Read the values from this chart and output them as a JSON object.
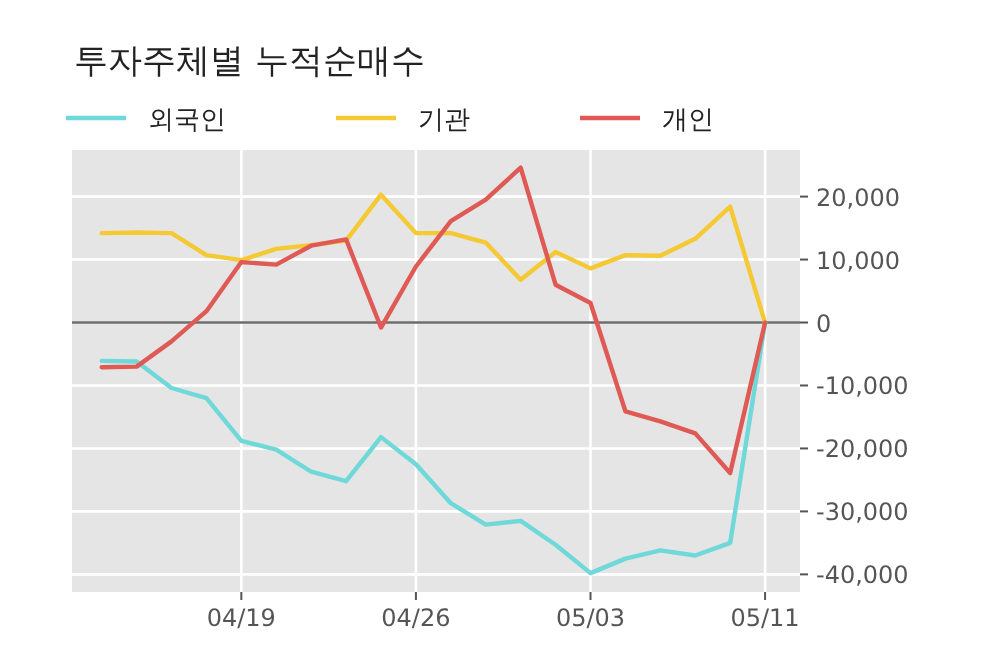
{
  "chart_data": {
    "type": "line",
    "title": "투자주체별 누적순매수",
    "categories": [
      null,
      null,
      null,
      null,
      "04/19",
      null,
      null,
      null,
      null,
      "04/26",
      null,
      null,
      null,
      null,
      "05/03",
      null,
      null,
      null,
      null,
      "05/11"
    ],
    "series": [
      {
        "name": "외국인",
        "color": "#6fd8d8",
        "values": [
          -6100,
          -6200,
          -10400,
          -12000,
          -18800,
          -20200,
          -23700,
          -25200,
          -18200,
          -22500,
          -28700,
          -32100,
          -31500,
          -35300,
          -39800,
          -37500,
          -36200,
          -37000,
          -35000,
          0
        ]
      },
      {
        "name": "기관",
        "color": "#f5c933",
        "values": [
          14200,
          14300,
          14200,
          10700,
          9900,
          11700,
          12300,
          13000,
          20300,
          14200,
          14200,
          12700,
          6800,
          11200,
          8600,
          10700,
          10600,
          13300,
          18400,
          0
        ]
      },
      {
        "name": "개인",
        "color": "#e05a55",
        "values": [
          -7100,
          -7000,
          -3000,
          1800,
          9600,
          9200,
          12200,
          13200,
          -800,
          8900,
          16100,
          19500,
          24600,
          6000,
          3100,
          -14100,
          -15700,
          -17600,
          -23900,
          0
        ]
      }
    ],
    "ylim": [
      -42800,
      27400
    ],
    "yticks": [
      {
        "value": -40000,
        "label": "-40,000"
      },
      {
        "value": -30000,
        "label": "-30,000"
      },
      {
        "value": -20000,
        "label": "-20,000"
      },
      {
        "value": -10000,
        "label": "-10,000"
      },
      0,
      {
        "value": 10000,
        "label": "10,000"
      },
      {
        "value": 20000,
        "label": "20,000"
      }
    ],
    "ref_lines": [
      {
        "axis": "y",
        "value": 0,
        "color": "#6b6b6b"
      }
    ],
    "grid": true,
    "legend": "top left"
  }
}
